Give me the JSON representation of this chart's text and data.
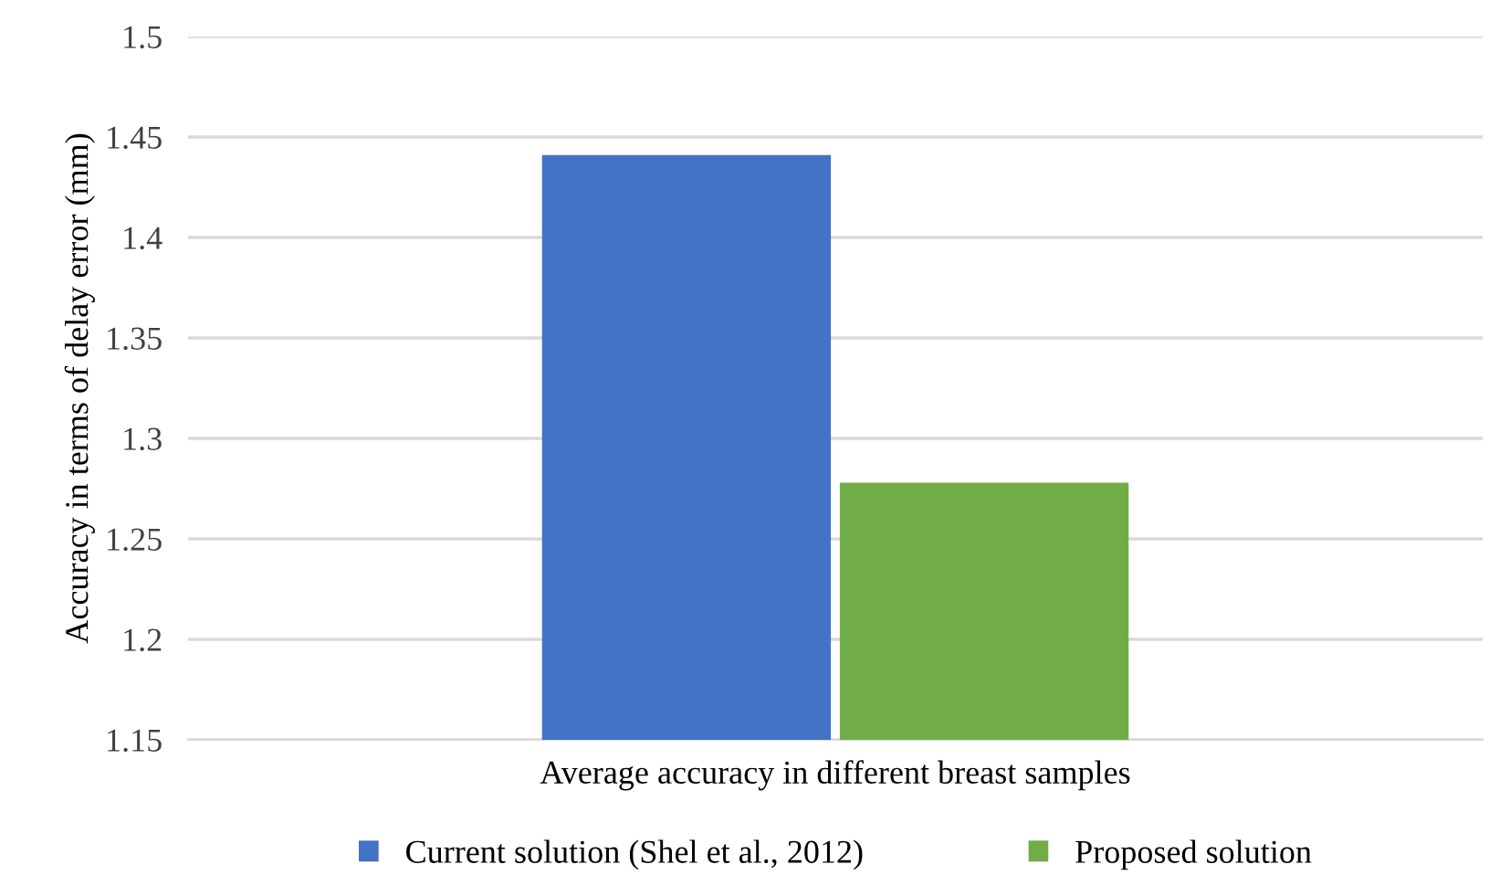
{
  "chart_data": {
    "type": "bar",
    "ylabel": "Accuracy in terms of delay error (mm)",
    "categories": [
      "Average accuracy in different breast samples"
    ],
    "series": [
      {
        "name": "Current solution (Shel et al., 2012)",
        "color": "#4472c4",
        "values": [
          1.441
        ]
      },
      {
        "name": "Proposed solution",
        "color": "#70ad47",
        "values": [
          1.278
        ]
      }
    ],
    "ylim": [
      1.15,
      1.5
    ],
    "yticks": [
      1.15,
      1.2,
      1.25,
      1.3,
      1.35,
      1.4,
      1.45,
      1.5
    ],
    "grid": "y",
    "legend": "bottom"
  }
}
